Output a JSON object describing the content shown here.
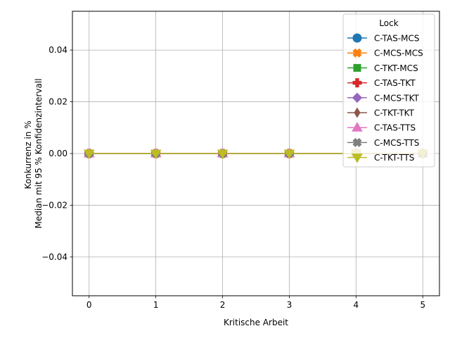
{
  "chart_data": {
    "type": "line",
    "xlabel": "Kritische Arbeit",
    "ylabel_lines": [
      "Konkurrenz in %",
      "Median mit 95 % Konfidenzintervall"
    ],
    "x": [
      0,
      1,
      2,
      3,
      4,
      5
    ],
    "xlim": [
      -0.25,
      5.25
    ],
    "ylim": [
      -0.055,
      0.055
    ],
    "x_ticks": [
      "0",
      "1",
      "2",
      "3",
      "4",
      "5"
    ],
    "y_ticks": [
      {
        "value": 0.04,
        "label": "0.04"
      },
      {
        "value": 0.02,
        "label": "0.02"
      },
      {
        "value": 0.0,
        "label": "0.00"
      },
      {
        "value": -0.02,
        "label": "−0.02"
      },
      {
        "value": -0.04,
        "label": "−0.04"
      }
    ],
    "grid": true,
    "legend_title": "Lock",
    "legend_position": "top-right",
    "series": [
      {
        "name": "C-TAS-MCS",
        "color": "#1f77b4",
        "marker": "circle",
        "values": [
          0,
          0,
          0,
          0,
          0,
          0
        ]
      },
      {
        "name": "C-MCS-MCS",
        "color": "#ff7f0e",
        "marker": "x-filled",
        "values": [
          0,
          0,
          0,
          0,
          0,
          0
        ]
      },
      {
        "name": "C-TKT-MCS",
        "color": "#2ca02c",
        "marker": "square",
        "values": [
          0,
          0,
          0,
          0,
          0,
          0
        ]
      },
      {
        "name": "C-TAS-TKT",
        "color": "#d62728",
        "marker": "plus-filled",
        "values": [
          0,
          0,
          0,
          0,
          0,
          0
        ]
      },
      {
        "name": "C-MCS-TKT",
        "color": "#9467bd",
        "marker": "diamond",
        "values": [
          0,
          0,
          0,
          0,
          0,
          0
        ]
      },
      {
        "name": "C-TKT-TKT",
        "color": "#8c564b",
        "marker": "thin-diamond",
        "values": [
          0,
          0,
          0,
          0,
          0,
          0
        ]
      },
      {
        "name": "C-TAS-TTS",
        "color": "#e377c2",
        "marker": "triangle-up",
        "values": [
          0,
          0,
          0,
          0,
          0,
          0
        ]
      },
      {
        "name": "C-MCS-TTS",
        "color": "#7f7f7f",
        "marker": "x-filled",
        "values": [
          0,
          0,
          0,
          0,
          0,
          0
        ]
      },
      {
        "name": "C-TKT-TTS",
        "color": "#bcbd22",
        "marker": "triangle-down",
        "values": [
          0,
          0,
          0,
          0,
          0,
          0
        ]
      }
    ]
  }
}
